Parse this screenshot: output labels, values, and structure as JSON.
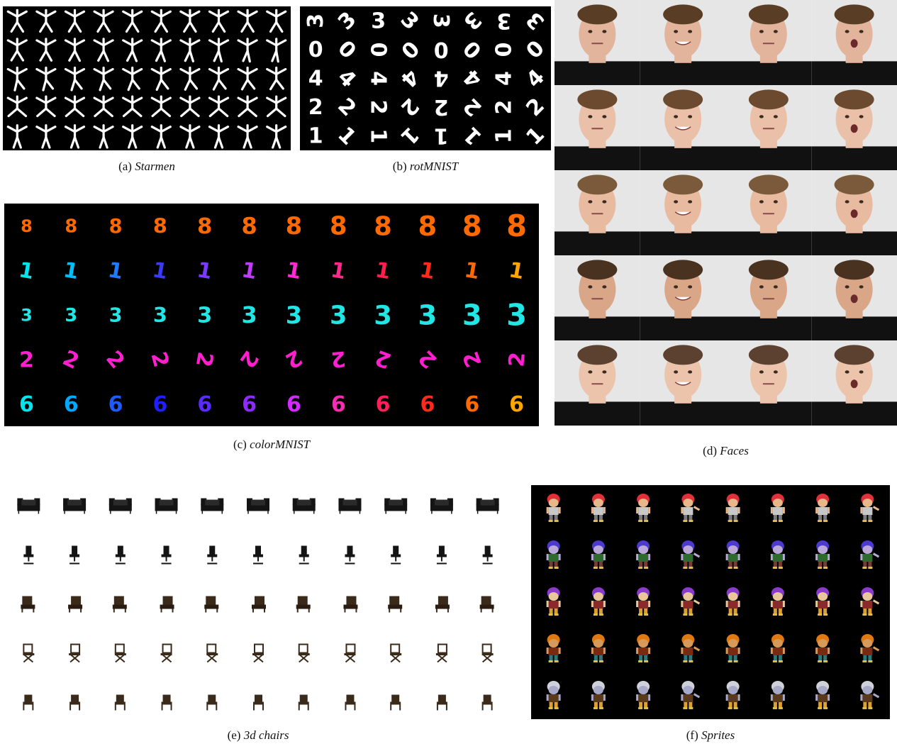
{
  "panels": [
    {
      "id": "a",
      "letter": "(a)",
      "name": "Starmen"
    },
    {
      "id": "b",
      "letter": "(b)",
      "name": "rotMNIST"
    },
    {
      "id": "c",
      "letter": "(c)",
      "name": "colorMNIST"
    },
    {
      "id": "d",
      "letter": "(d)",
      "name": "Faces"
    },
    {
      "id": "e",
      "letter": "(e)",
      "name": "3d chairs"
    },
    {
      "id": "f",
      "letter": "(f)",
      "name": "Sprites"
    }
  ],
  "rotmnist_digits": [
    "3",
    "0",
    "4",
    "2",
    "1"
  ],
  "colormnist_rows": [
    {
      "digit": "8",
      "colors": [
        "#ff6a00",
        "#ff6a00",
        "#ff6a00",
        "#ff6a00",
        "#ff6a00",
        "#ff6a00",
        "#ff6a00",
        "#ff6a00",
        "#ff6a00",
        "#ff6a00",
        "#ff6a00",
        "#ff6a00"
      ]
    },
    {
      "digit": "1",
      "colors": [
        "#00e5ee",
        "#00bfff",
        "#1e7bff",
        "#3a3aff",
        "#7a3aff",
        "#c23aff",
        "#ff2ad4",
        "#ff2a8c",
        "#ff1f4a",
        "#ff2a1a",
        "#ff6a00",
        "#ffa500"
      ]
    },
    {
      "digit": "3",
      "colors": [
        "#22e6e6",
        "#22e6e6",
        "#22e6e6",
        "#22e6e6",
        "#22e6e6",
        "#22e6e6",
        "#22e6e6",
        "#22e6e6",
        "#22e6e6",
        "#22e6e6",
        "#22e6e6",
        "#22e6e6"
      ]
    },
    {
      "digit": "2",
      "colors": [
        "#ff1fcf",
        "#ff1fcf",
        "#ff1fcf",
        "#ff1fcf",
        "#ff1fcf",
        "#ff1fcf",
        "#ff1fcf",
        "#ff1fcf",
        "#ff1fcf",
        "#ff1fcf",
        "#ff1fcf",
        "#ff1fcf"
      ]
    },
    {
      "digit": "6",
      "colors": [
        "#00e5ee",
        "#00a8ff",
        "#1e5bff",
        "#2020ff",
        "#5a2aff",
        "#8f2aff",
        "#d42aff",
        "#ff2ab4",
        "#ff1f5a",
        "#ff2a1a",
        "#ff6a00",
        "#ffa500"
      ]
    }
  ],
  "faces_rows": [
    {
      "hair": "#5a3d25",
      "skin": "#e3b49c"
    },
    {
      "hair": "#6b4a30",
      "skin": "#eac0a8"
    },
    {
      "hair": "#7a5a3a",
      "skin": "#e8bba0"
    },
    {
      "hair": "#4a3220",
      "skin": "#d9a688"
    },
    {
      "hair": "#5c4130",
      "skin": "#ecc4ac"
    }
  ],
  "sprites_rows": [
    {
      "hair": "#e0303a",
      "body": "#c8c8c8",
      "legs": "#7a7a7a",
      "skin": "#e8b88a"
    },
    {
      "hair": "#4b3acc",
      "body": "#2e6b2e",
      "legs": "#7a3a3a",
      "skin": "#b9a8d8"
    },
    {
      "hair": "#8a3acc",
      "body": "#8a2a2a",
      "legs": "#d8a030",
      "skin": "#e8c89a"
    },
    {
      "hair": "#e07a10",
      "body": "#7a2a10",
      "legs": "#2a7a7a",
      "skin": "#d89a5a"
    },
    {
      "hair": "#d0d0d8",
      "body": "#5a3a1a",
      "legs": "#e0a030",
      "skin": "#a8a8c8"
    }
  ],
  "chair_rows": [
    "sofa",
    "office",
    "armchair",
    "folding",
    "dining"
  ]
}
